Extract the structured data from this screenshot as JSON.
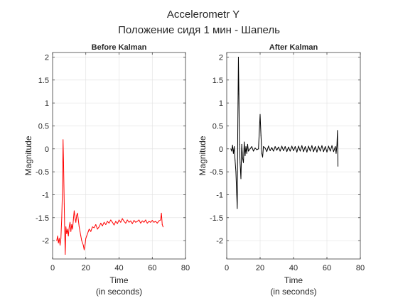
{
  "figure": {
    "title": "Accelerometr Y",
    "subtitle": "Положение сидя 1 мин - Шапель",
    "background": "#ffffff",
    "axes_color": "#262626",
    "grid_color": "#dfdfdf"
  },
  "chart_data": [
    {
      "type": "line",
      "title": "Before Kalman",
      "xlabel": "Time",
      "xlabel2": "(in seconds)",
      "ylabel": "Magnitude",
      "xlim": [
        0,
        80
      ],
      "ylim": [
        -2.4,
        2.1
      ],
      "xticks": [
        0,
        20,
        40,
        60,
        80
      ],
      "yticks": [
        -2,
        -1.5,
        -1,
        -0.5,
        0,
        0.5,
        1,
        1.5,
        2
      ],
      "grid": true,
      "series": [
        {
          "color": "#ff0000",
          "x": [
            2.5,
            3.0,
            3.5,
            4.0,
            4.5,
            5.0,
            5.5,
            6.0,
            6.3,
            6.6,
            7.0,
            7.3,
            7.6,
            8.0,
            8.5,
            9.0,
            9.5,
            10.0,
            10.5,
            11.0,
            11.5,
            12.0,
            12.5,
            13.0,
            13.5,
            14.0,
            14.5,
            15.0,
            15.5,
            16.0,
            16.5,
            17.0,
            17.5,
            18.0,
            18.5,
            19.0,
            19.5,
            20.0,
            20.5,
            21.0,
            21.5,
            22.0,
            23.0,
            24.0,
            25.0,
            26.0,
            27.0,
            28.0,
            29.0,
            30.0,
            31.0,
            32.0,
            33.0,
            34.0,
            35.0,
            36.0,
            37.0,
            38.0,
            39.0,
            40.0,
            41.0,
            42.0,
            43.0,
            44.0,
            45.0,
            46.0,
            47.0,
            48.0,
            49.0,
            50.0,
            51.0,
            52.0,
            53.0,
            54.0,
            55.0,
            56.0,
            57.0,
            58.0,
            59.0,
            60.0,
            61.0,
            62.0,
            63.0,
            64.0,
            65.0,
            65.5,
            66.0,
            66.5
          ],
          "values": [
            -2.0,
            -1.9,
            -2.05,
            -1.95,
            -2.1,
            -1.95,
            -1.5,
            -0.8,
            0.2,
            -0.3,
            -1.2,
            -1.8,
            -2.3,
            -1.7,
            -1.85,
            -1.75,
            -1.9,
            -1.7,
            -1.6,
            -1.8,
            -1.65,
            -1.75,
            -1.55,
            -1.35,
            -1.5,
            -1.6,
            -1.45,
            -1.4,
            -1.55,
            -1.7,
            -1.8,
            -1.9,
            -2.0,
            -2.05,
            -2.1,
            -2.2,
            -2.1,
            -1.95,
            -1.9,
            -1.85,
            -1.8,
            -1.75,
            -1.8,
            -1.7,
            -1.72,
            -1.65,
            -1.75,
            -1.7,
            -1.62,
            -1.68,
            -1.6,
            -1.65,
            -1.58,
            -1.62,
            -1.55,
            -1.6,
            -1.66,
            -1.58,
            -1.63,
            -1.55,
            -1.6,
            -1.52,
            -1.58,
            -1.62,
            -1.55,
            -1.6,
            -1.57,
            -1.63,
            -1.56,
            -1.6,
            -1.58,
            -1.55,
            -1.62,
            -1.57,
            -1.6,
            -1.55,
            -1.62,
            -1.58,
            -1.6,
            -1.56,
            -1.6,
            -1.58,
            -1.62,
            -1.57,
            -1.55,
            -1.4,
            -1.65,
            -1.7
          ]
        }
      ]
    },
    {
      "type": "line",
      "title": "After Kalman",
      "xlabel": "Time",
      "xlabel2": "(in seconds)",
      "ylabel": "Magnitude",
      "xlim": [
        0,
        80
      ],
      "ylim": [
        -2.4,
        2.1
      ],
      "xticks": [
        0,
        20,
        40,
        60,
        80
      ],
      "yticks": [
        -2,
        -1.5,
        -1,
        -0.5,
        0,
        0.5,
        1,
        1.5,
        2
      ],
      "grid": true,
      "series": [
        {
          "color": "#000000",
          "x": [
            2.5,
            3.0,
            3.5,
            4.0,
            4.5,
            5.0,
            5.5,
            6.0,
            6.3,
            6.6,
            7.0,
            7.3,
            7.6,
            8.0,
            8.5,
            9.0,
            9.5,
            10.0,
            10.5,
            11.0,
            11.5,
            12.0,
            12.5,
            13.0,
            14.0,
            15.0,
            16.0,
            17.0,
            18.0,
            19.0,
            20.0,
            20.5,
            21.0,
            21.5,
            22.0,
            23.0,
            24.0,
            25.0,
            26.0,
            27.0,
            28.0,
            29.0,
            30.0,
            31.0,
            32.0,
            33.0,
            34.0,
            35.0,
            36.0,
            37.0,
            38.0,
            39.0,
            40.0,
            41.0,
            42.0,
            43.0,
            44.0,
            45.0,
            46.0,
            47.0,
            48.0,
            49.0,
            50.0,
            51.0,
            52.0,
            53.0,
            54.0,
            55.0,
            56.0,
            57.0,
            58.0,
            59.0,
            60.0,
            61.0,
            62.0,
            63.0,
            64.0,
            65.0,
            65.5,
            66.0,
            66.3,
            66.6
          ],
          "values": [
            0.0,
            -0.05,
            0.08,
            -0.1,
            0.05,
            -0.25,
            -0.5,
            -1.0,
            -1.3,
            0.3,
            2.0,
            1.2,
            0.1,
            -0.3,
            -0.65,
            0.1,
            -0.2,
            -0.3,
            0.15,
            -0.15,
            0.05,
            -0.1,
            0.1,
            -0.05,
            0.0,
            0.05,
            -0.05,
            0.02,
            -0.02,
            0.0,
            0.75,
            0.3,
            -0.1,
            -0.18,
            0.05,
            0.02,
            -0.06,
            0.06,
            -0.04,
            0.03,
            -0.05,
            0.05,
            -0.03,
            0.04,
            -0.05,
            0.06,
            -0.04,
            0.05,
            -0.06,
            0.04,
            -0.05,
            0.06,
            -0.04,
            0.05,
            -0.07,
            0.06,
            -0.05,
            0.07,
            -0.06,
            0.05,
            -0.07,
            0.06,
            -0.05,
            0.07,
            -0.06,
            0.05,
            -0.07,
            0.06,
            -0.05,
            0.07,
            -0.06,
            0.05,
            -0.07,
            0.06,
            -0.05,
            0.07,
            -0.06,
            0.05,
            -0.1,
            0.08,
            0.4,
            -0.38
          ]
        }
      ]
    }
  ]
}
